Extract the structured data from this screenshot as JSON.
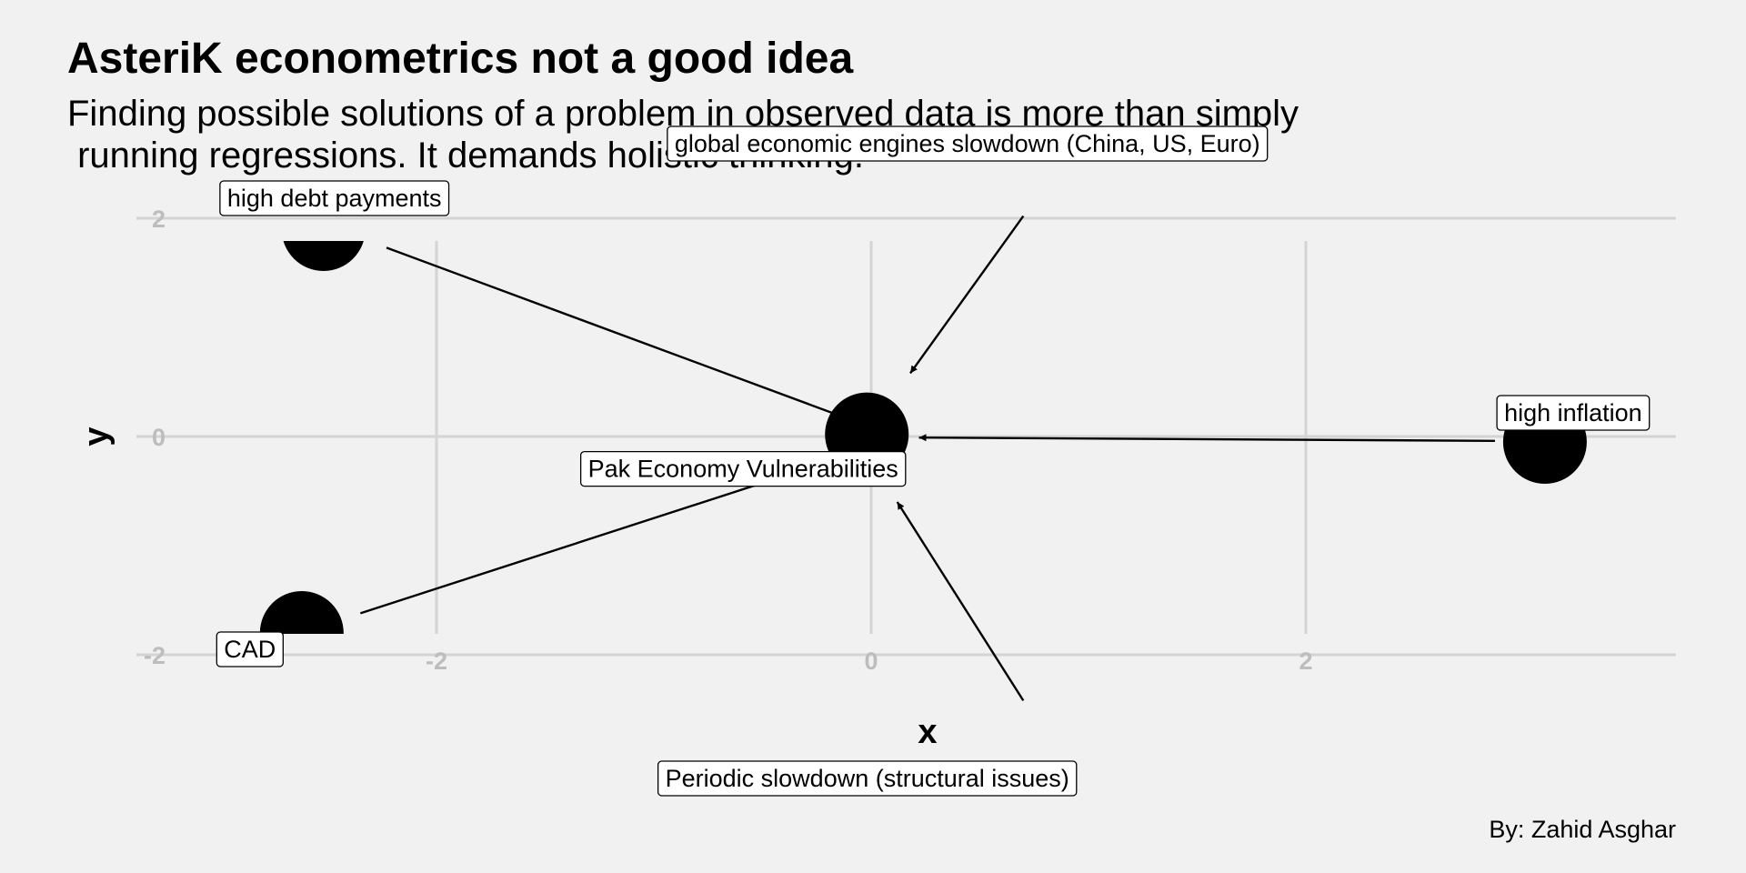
{
  "title": "AsteriK econometrics not a good idea",
  "subtitle_line1": "Finding possible solutions of a problem in observed data is more than simply",
  "subtitle_line2": " running regressions. It demands holistic thinking.",
  "caption": "By: Zahid Asghar",
  "x_axis": {
    "title": "x",
    "ticks": [
      {
        "value": -2,
        "label": "-2"
      },
      {
        "value": 0,
        "label": "0"
      },
      {
        "value": 2,
        "label": "2"
      }
    ]
  },
  "y_axis": {
    "title": "y",
    "ticks": [
      {
        "value": 2,
        "label": "2"
      },
      {
        "value": 0,
        "label": "0"
      },
      {
        "value": -2,
        "label": "-2"
      }
    ]
  },
  "chart_data": {
    "type": "scatter",
    "title": "AsteriK econometrics not a good idea",
    "xlabel": "x",
    "ylabel": "y",
    "xlim": [
      -3.05,
      3.73
    ],
    "ylim": [
      -3.6,
      3.6
    ],
    "grid": true,
    "legend": "none",
    "nodes": [
      {
        "id": "center",
        "label": "Pak Economy Vulnerabilities",
        "x": -0.02,
        "y": 0.02
      },
      {
        "id": "debt",
        "label": "high debt payments",
        "x": -2.52,
        "y": 1.9
      },
      {
        "id": "global",
        "label": "global economic engines slowdown (China, US, Euro)",
        "x": 1.02,
        "y": 3.0
      },
      {
        "id": "inflation",
        "label": "high inflation",
        "x": 3.1,
        "y": -0.05
      },
      {
        "id": "cad",
        "label": "CAD",
        "x": -2.62,
        "y": -1.8
      },
      {
        "id": "periodic",
        "label": "Periodic slowdown (structural issues)",
        "x": 0.89,
        "y": -3.05
      }
    ],
    "edges": [
      {
        "from": "debt",
        "to": "center"
      },
      {
        "from": "global",
        "to": "center"
      },
      {
        "from": "inflation",
        "to": "center"
      },
      {
        "from": "cad",
        "to": "center"
      },
      {
        "from": "periodic",
        "to": "center"
      }
    ]
  }
}
